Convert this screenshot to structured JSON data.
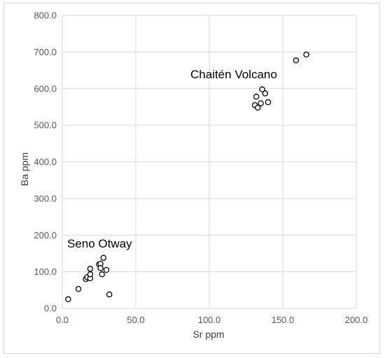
{
  "chart_data": {
    "type": "scatter",
    "xlabel": "Sr ppm",
    "ylabel": "Ba ppm",
    "xlim": [
      0,
      200
    ],
    "ylim": [
      0,
      800
    ],
    "xticks": [
      "0.0",
      "50.0",
      "100.0",
      "150.0",
      "200.0"
    ],
    "yticks": [
      "0.0",
      "100.0",
      "200.0",
      "300.0",
      "400.0",
      "500.0",
      "600.0",
      "700.0",
      "800.0"
    ],
    "grid": true,
    "legend": "none",
    "marker": "open-circle",
    "annotations": [
      {
        "text": "Chaitén Volcano"
      },
      {
        "text": "Seno Otway"
      }
    ],
    "points": [
      {
        "x": 4,
        "y": 25
      },
      {
        "x": 11,
        "y": 53
      },
      {
        "x": 16,
        "y": 80
      },
      {
        "x": 17,
        "y": 85
      },
      {
        "x": 19,
        "y": 82
      },
      {
        "x": 19,
        "y": 93
      },
      {
        "x": 19,
        "y": 108
      },
      {
        "x": 25,
        "y": 120
      },
      {
        "x": 26,
        "y": 122
      },
      {
        "x": 26,
        "y": 110
      },
      {
        "x": 27,
        "y": 93
      },
      {
        "x": 28,
        "y": 138
      },
      {
        "x": 30,
        "y": 105
      },
      {
        "x": 32,
        "y": 38
      },
      {
        "x": 131,
        "y": 555
      },
      {
        "x": 132,
        "y": 578
      },
      {
        "x": 133,
        "y": 548
      },
      {
        "x": 135,
        "y": 560
      },
      {
        "x": 136,
        "y": 598
      },
      {
        "x": 138,
        "y": 587
      },
      {
        "x": 140,
        "y": 563
      },
      {
        "x": 159,
        "y": 677
      },
      {
        "x": 166,
        "y": 693
      }
    ]
  }
}
